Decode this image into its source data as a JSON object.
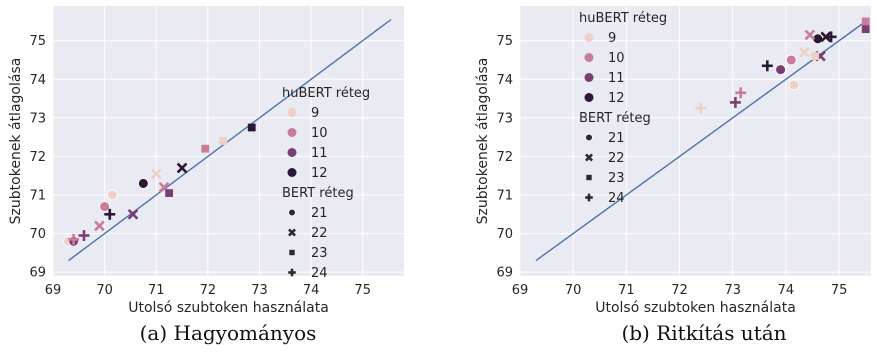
{
  "chart_data": [
    {
      "type": "scatter",
      "caption": "(a) Hagyományos",
      "xlabel": "Utolsó szubtoken használata",
      "ylabel": "Szubtokenek átlagolása",
      "xlim": [
        69,
        75.8
      ],
      "ylim": [
        68.9,
        75.9
      ],
      "xticks": [
        69,
        70,
        71,
        72,
        73,
        74,
        75
      ],
      "yticks": [
        69,
        70,
        71,
        72,
        73,
        74,
        75
      ],
      "grid": true,
      "legend_placement": "right",
      "diagonal": [
        [
          69.3,
          69.3
        ],
        [
          75.55,
          75.55
        ]
      ],
      "legend_hue_title": "huBERT réteg",
      "legend_hue": [
        {
          "label": "9",
          "color": "#efd0c8"
        },
        {
          "label": "10",
          "color": "#c97c97"
        },
        {
          "label": "11",
          "color": "#7a3e72"
        },
        {
          "label": "12",
          "color": "#2b1834"
        }
      ],
      "legend_style_title": "BERT réteg",
      "legend_style": [
        {
          "label": "21",
          "marker": "circle"
        },
        {
          "label": "22",
          "marker": "x"
        },
        {
          "label": "23",
          "marker": "square"
        },
        {
          "label": "24",
          "marker": "plus"
        }
      ],
      "points": [
        {
          "x": 69.3,
          "y": 69.8,
          "hue": "9",
          "style": "21"
        },
        {
          "x": 70.0,
          "y": 70.7,
          "hue": "10",
          "style": "21"
        },
        {
          "x": 69.4,
          "y": 69.8,
          "hue": "11",
          "style": "21"
        },
        {
          "x": 70.15,
          "y": 71.0,
          "hue": "9",
          "style": "21"
        },
        {
          "x": 70.75,
          "y": 71.3,
          "hue": "12",
          "style": "21"
        },
        {
          "x": 69.9,
          "y": 70.2,
          "hue": "10",
          "style": "22"
        },
        {
          "x": 71.0,
          "y": 71.55,
          "hue": "9",
          "style": "22"
        },
        {
          "x": 70.55,
          "y": 70.5,
          "hue": "11",
          "style": "22"
        },
        {
          "x": 71.15,
          "y": 71.2,
          "hue": "10",
          "style": "22"
        },
        {
          "x": 71.5,
          "y": 71.7,
          "hue": "12",
          "style": "22"
        },
        {
          "x": 71.25,
          "y": 71.05,
          "hue": "11",
          "style": "23"
        },
        {
          "x": 71.95,
          "y": 72.2,
          "hue": "10",
          "style": "23"
        },
        {
          "x": 72.3,
          "y": 72.4,
          "hue": "9",
          "style": "23"
        },
        {
          "x": 72.85,
          "y": 72.75,
          "hue": "12",
          "style": "23"
        },
        {
          "x": 69.6,
          "y": 69.95,
          "hue": "11",
          "style": "24"
        },
        {
          "x": 70.1,
          "y": 70.5,
          "hue": "12",
          "style": "24"
        },
        {
          "x": 69.4,
          "y": 69.85,
          "hue": "10",
          "style": "24"
        }
      ]
    },
    {
      "type": "scatter",
      "caption": "(b) Ritkítás után",
      "xlabel": "Utolsó szubtoken használata",
      "ylabel": "Szubtokenek átlagolása",
      "xlim": [
        69,
        75.6
      ],
      "ylim": [
        68.9,
        75.9
      ],
      "xticks": [
        69,
        70,
        71,
        72,
        73,
        74,
        75
      ],
      "yticks": [
        69,
        70,
        71,
        72,
        73,
        74,
        75
      ],
      "grid": true,
      "legend_placement": "top-left",
      "diagonal": [
        [
          69.3,
          69.3
        ],
        [
          75.55,
          75.55
        ]
      ],
      "legend_hue_title": "huBERT réteg",
      "legend_hue": [
        {
          "label": "9",
          "color": "#efd0c8"
        },
        {
          "label": "10",
          "color": "#c97c97"
        },
        {
          "label": "11",
          "color": "#7a3e72"
        },
        {
          "label": "12",
          "color": "#2b1834"
        }
      ],
      "legend_style_title": "BERT réteg",
      "legend_style": [
        {
          "label": "21",
          "marker": "circle"
        },
        {
          "label": "22",
          "marker": "x"
        },
        {
          "label": "23",
          "marker": "square"
        },
        {
          "label": "24",
          "marker": "plus"
        }
      ],
      "points": [
        {
          "x": 74.15,
          "y": 73.85,
          "hue": "9",
          "style": "21"
        },
        {
          "x": 74.1,
          "y": 74.5,
          "hue": "10",
          "style": "21"
        },
        {
          "x": 73.9,
          "y": 74.25,
          "hue": "11",
          "style": "21"
        },
        {
          "x": 74.6,
          "y": 75.05,
          "hue": "12",
          "style": "21"
        },
        {
          "x": 74.35,
          "y": 74.7,
          "hue": "9",
          "style": "22"
        },
        {
          "x": 74.45,
          "y": 75.15,
          "hue": "10",
          "style": "22"
        },
        {
          "x": 74.65,
          "y": 74.6,
          "hue": "11",
          "style": "22"
        },
        {
          "x": 74.75,
          "y": 75.1,
          "hue": "12",
          "style": "22"
        },
        {
          "x": 74.55,
          "y": 74.6,
          "hue": "9",
          "style": "23"
        },
        {
          "x": 75.5,
          "y": 75.5,
          "hue": "10",
          "style": "23"
        },
        {
          "x": 75.5,
          "y": 75.3,
          "hue": "11",
          "style": "23"
        },
        {
          "x": 72.4,
          "y": 73.25,
          "hue": "9",
          "style": "24"
        },
        {
          "x": 73.15,
          "y": 73.65,
          "hue": "10",
          "style": "24"
        },
        {
          "x": 73.05,
          "y": 73.4,
          "hue": "11",
          "style": "24"
        },
        {
          "x": 73.65,
          "y": 74.35,
          "hue": "12",
          "style": "24"
        },
        {
          "x": 74.85,
          "y": 75.1,
          "hue": "12",
          "style": "24"
        }
      ]
    }
  ]
}
